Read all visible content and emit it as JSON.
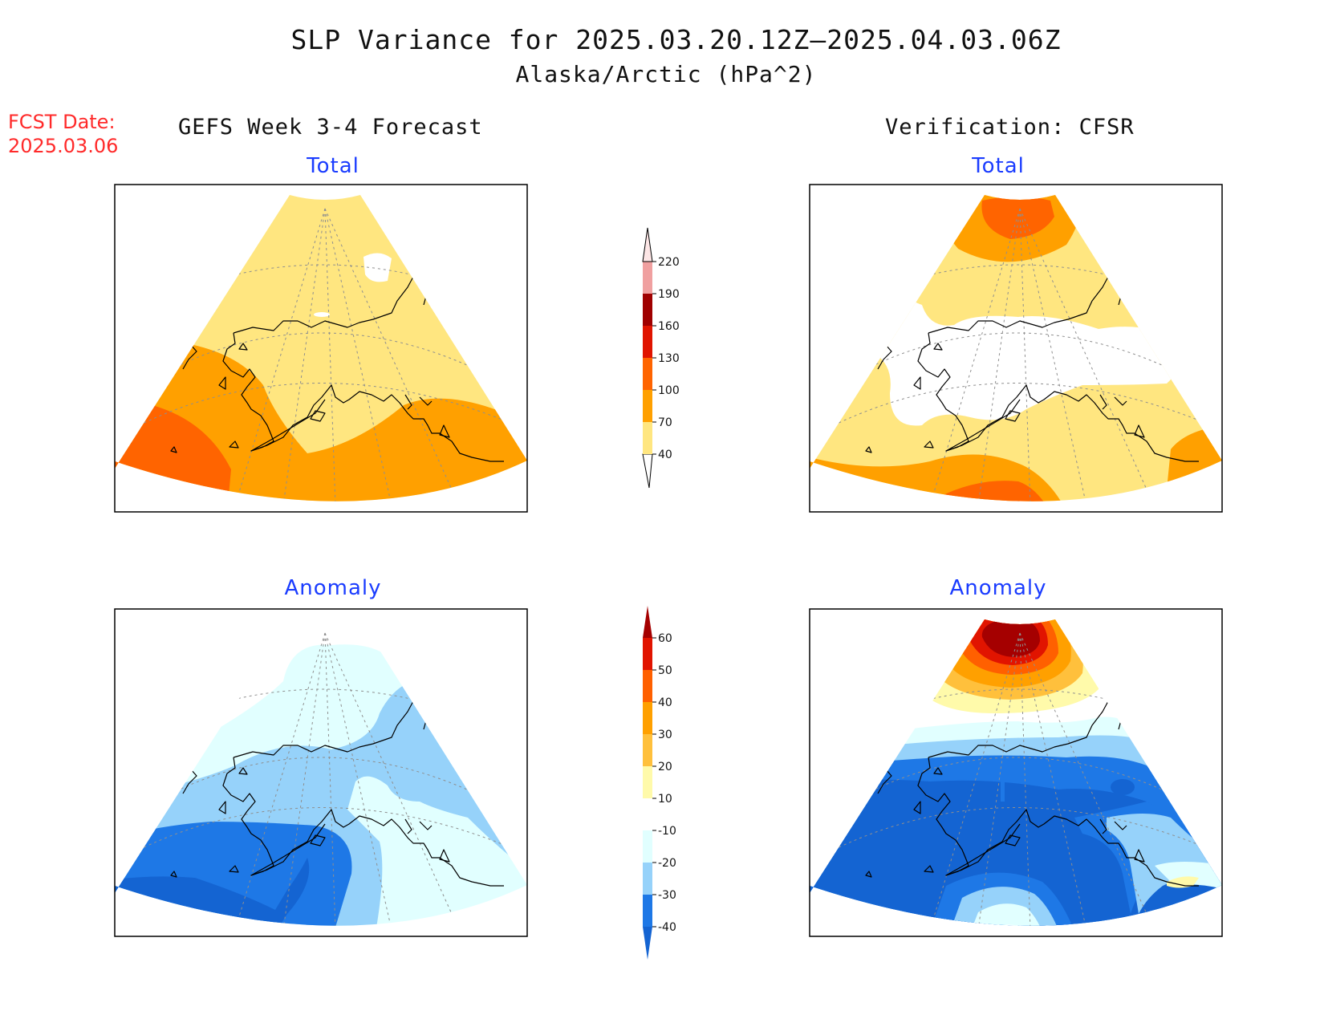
{
  "title": {
    "line1": "SLP Variance for 2025.03.20.12Z–2025.04.03.06Z",
    "line2": "Alaska/Arctic (hPa^2)"
  },
  "forecast_date": {
    "label": "FCST Date:",
    "value": "2025.03.06"
  },
  "columns": {
    "left": "GEFS Week 3-4 Forecast",
    "right": "Verification: CFSR"
  },
  "panels": {
    "fcst_total_title": "Total",
    "verif_total_title": "Total",
    "fcst_anom_title": "Anomaly",
    "verif_anom_title": "Anomaly"
  },
  "colorbars": {
    "total": {
      "levels": [
        "40",
        "70",
        "100",
        "130",
        "160",
        "190",
        "220"
      ],
      "colors": [
        "#ffe680",
        "#ffa000",
        "#ff6400",
        "#e01400",
        "#a00000",
        "#f0a0a0",
        "#fde6e6"
      ]
    },
    "anomaly": {
      "levels": [
        "-40",
        "-30",
        "-20",
        "-10",
        "10",
        "20",
        "30",
        "40",
        "50",
        "60"
      ],
      "colors": [
        "#1464d2",
        "#1e78e6",
        "#96d2fa",
        "#e1ffff",
        "#ffffff",
        "#fffaaa",
        "#ffc03c",
        "#ffa000",
        "#ff6000",
        "#e11400",
        "#a50000"
      ]
    }
  },
  "map_colors": {
    "coast": "#000000",
    "grid": "#888888"
  }
}
